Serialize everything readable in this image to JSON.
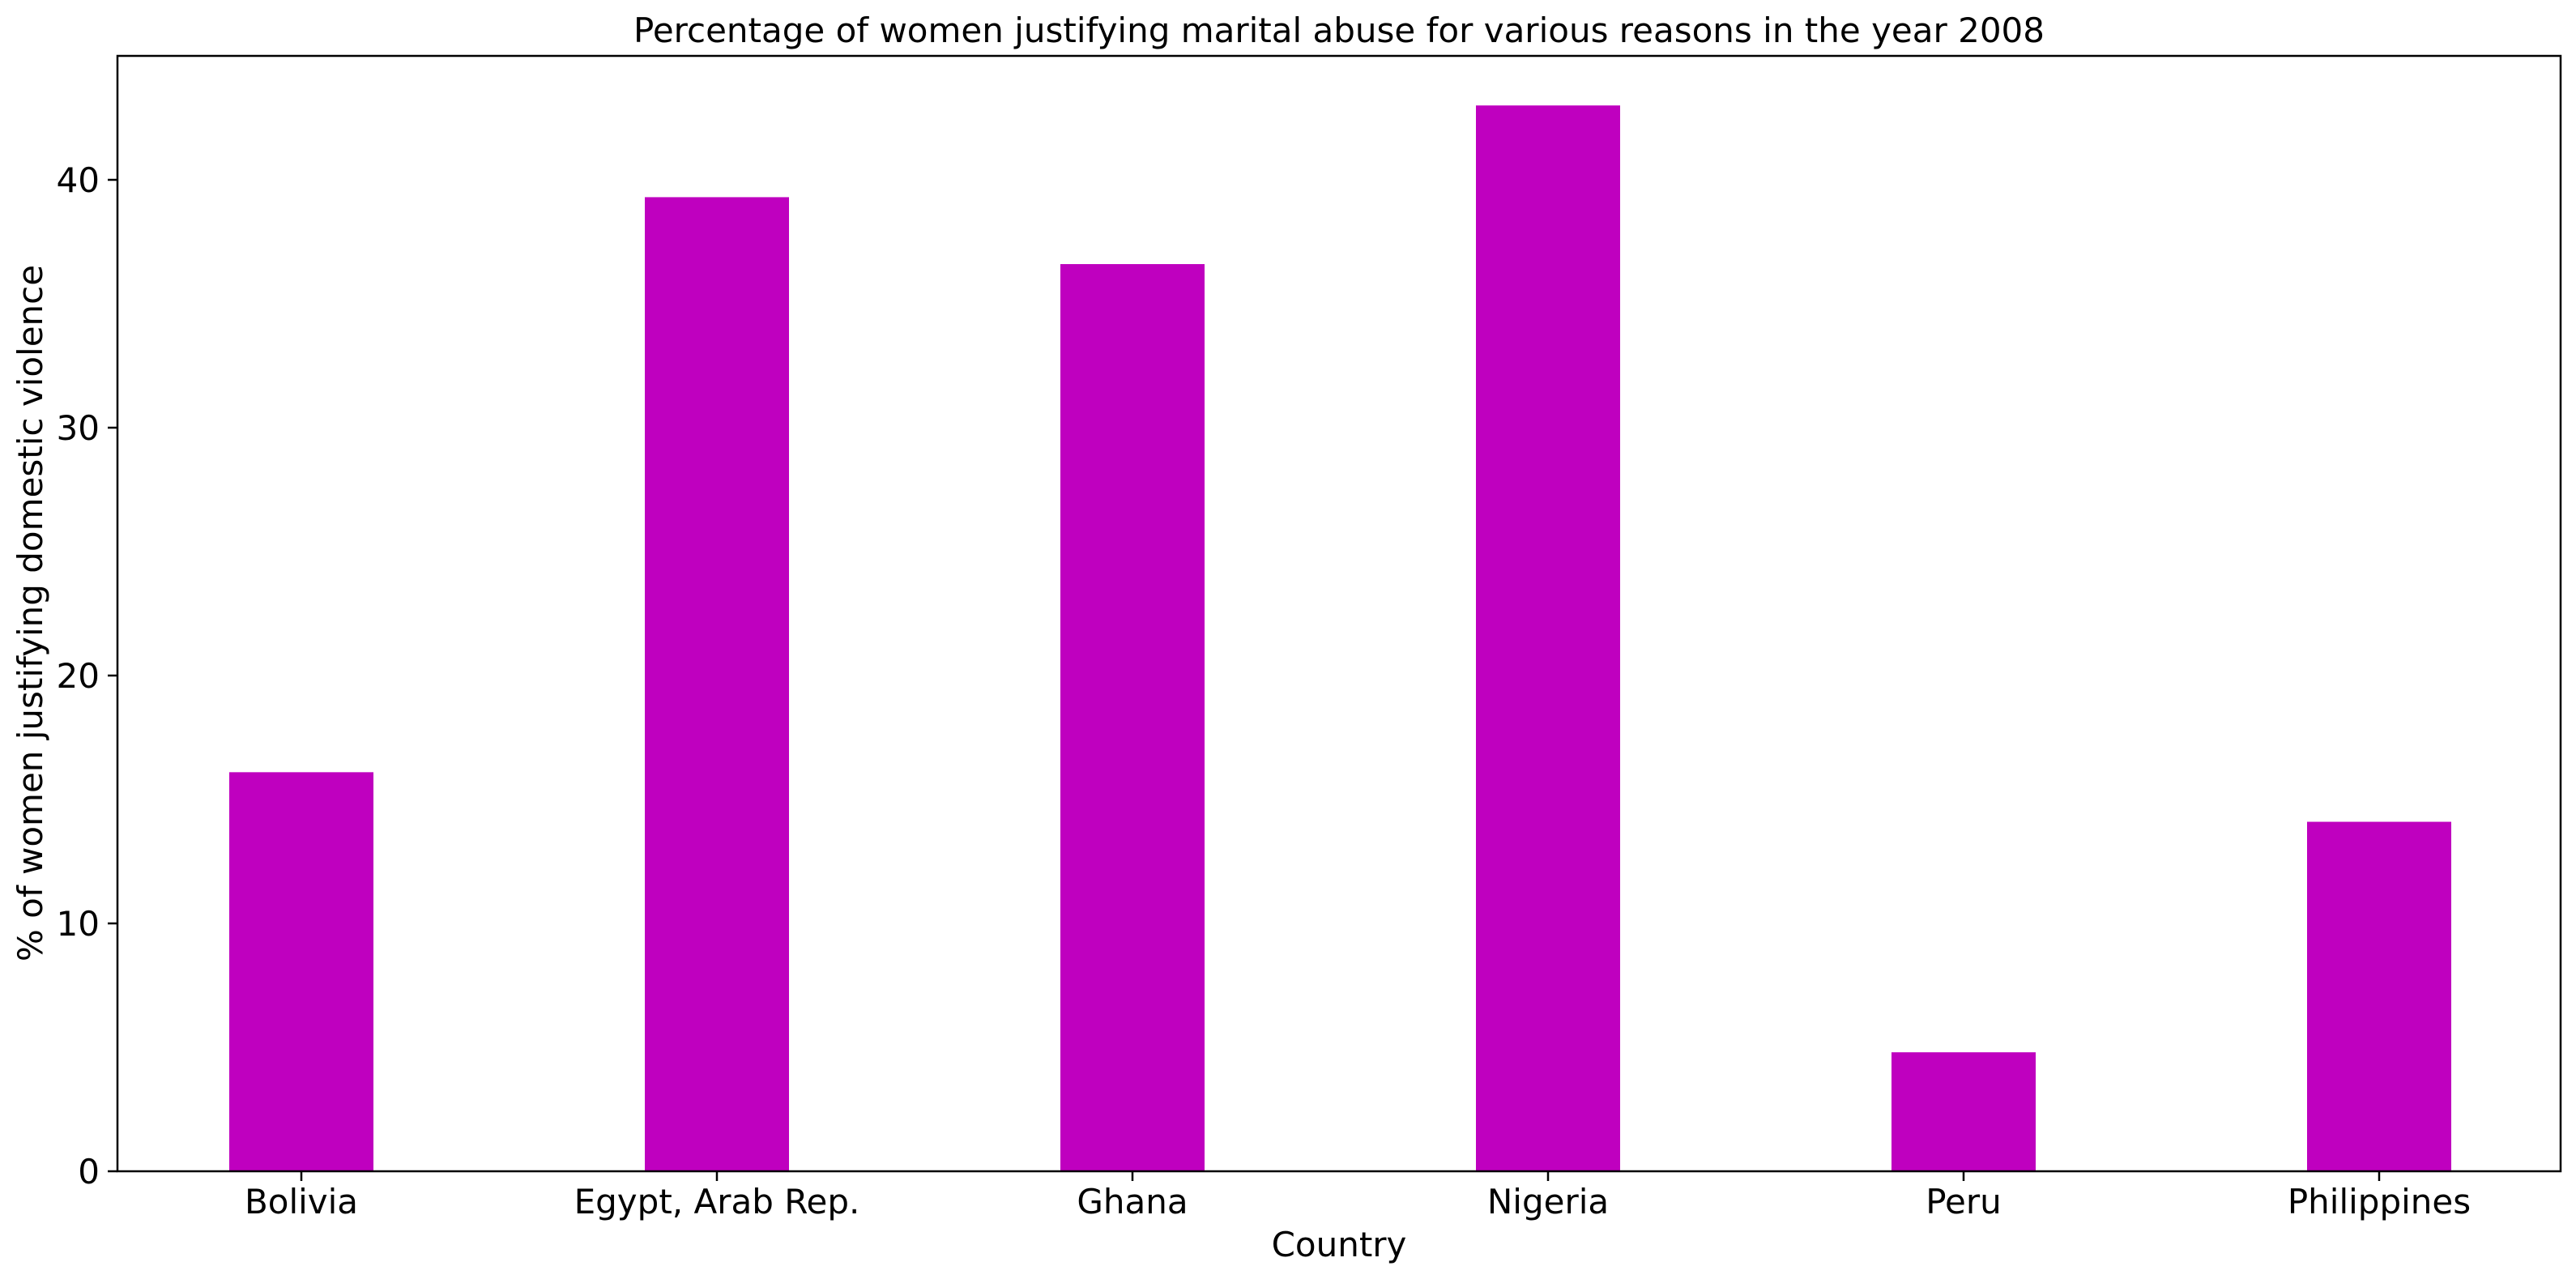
{
  "chart_data": {
    "type": "bar",
    "title": "Percentage of women justifying marital abuse for various reasons in the year 2008",
    "xlabel": "Country",
    "ylabel": "% of women justifying domestic violence",
    "categories": [
      "Bolivia",
      "Egypt, Arab Rep.",
      "Ghana",
      "Nigeria",
      "Peru",
      "Philippines"
    ],
    "values": [
      16.1,
      39.3,
      36.6,
      43.0,
      4.8,
      14.1
    ],
    "ylim": [
      0,
      45
    ],
    "yticks": [
      0,
      10,
      20,
      30,
      40
    ],
    "grid": false,
    "legend": "none",
    "bar_color": "#bf00bf"
  }
}
